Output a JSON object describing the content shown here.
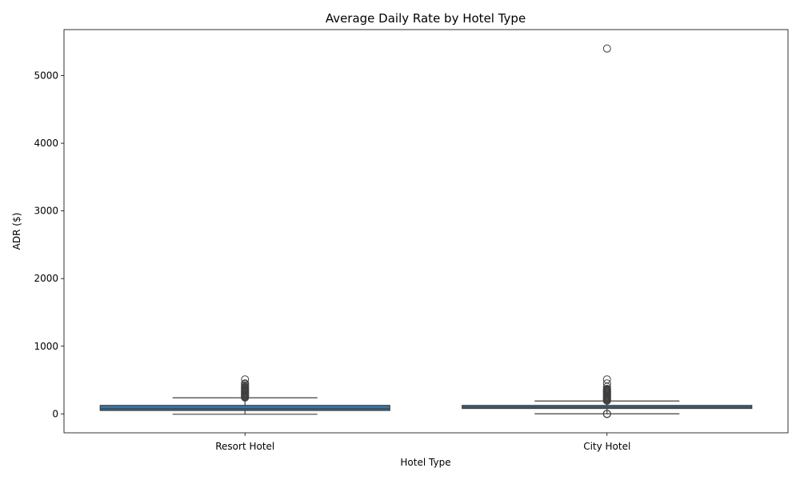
{
  "chart_data": {
    "type": "box",
    "title": "Average Daily Rate by Hotel Type",
    "xlabel": "Hotel Type",
    "ylabel": "ADR ($)",
    "ylim": [
      -280,
      5680
    ],
    "yticks": [
      0,
      1000,
      2000,
      3000,
      4000,
      5000
    ],
    "grid": false,
    "box_color": "#3a75a8",
    "line_color": "#3f3f3f",
    "categories": [
      "Resort Hotel",
      "City Hotel"
    ],
    "boxes": [
      {
        "category": "Resort Hotel",
        "whisker_low": -6,
        "q1": 50,
        "median": 75,
        "q3": 125,
        "whisker_high": 237,
        "outliers": [
          240,
          250,
          260,
          270,
          280,
          290,
          300,
          310,
          320,
          330,
          340,
          350,
          360,
          370,
          380,
          390,
          400,
          420,
          440,
          450,
          510
        ]
      },
      {
        "category": "City Hotel",
        "whisker_low": 1,
        "q1": 80,
        "median": 100,
        "q3": 125,
        "whisker_high": 190,
        "outliers": [
          0,
          0,
          0,
          0,
          195,
          200,
          210,
          220,
          230,
          240,
          250,
          260,
          270,
          280,
          290,
          300,
          310,
          320,
          330,
          340,
          350,
          360,
          370,
          400,
          450,
          510,
          5400
        ]
      }
    ]
  }
}
